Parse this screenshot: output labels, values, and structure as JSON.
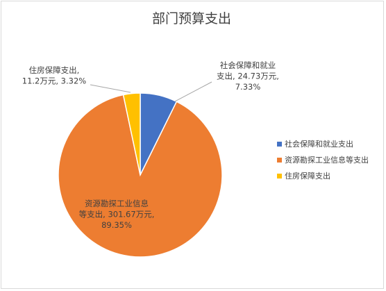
{
  "chart_data": {
    "type": "pie",
    "title": "部门预算支出",
    "slices": [
      {
        "name": "社会保障和就业支出",
        "value": 24.73,
        "percent": 7.33,
        "color": "#4472c4",
        "label_lines": [
          "社会保障和就业",
          "支出, 24.73万元,",
          "7.33%"
        ]
      },
      {
        "name": "资源勘探工业信息等支出",
        "value": 301.67,
        "percent": 89.35,
        "color": "#ed7d31",
        "label_lines": [
          "资源勘探工业信息",
          "等支出, 301.67万元,",
          "89.35%"
        ]
      },
      {
        "name": "住房保障支出",
        "value": 11.2,
        "percent": 3.32,
        "color": "#ffc000",
        "label_lines": [
          "住房保障支出,",
          "11.2万元, 3.32%"
        ]
      }
    ],
    "legend_position": "right"
  }
}
